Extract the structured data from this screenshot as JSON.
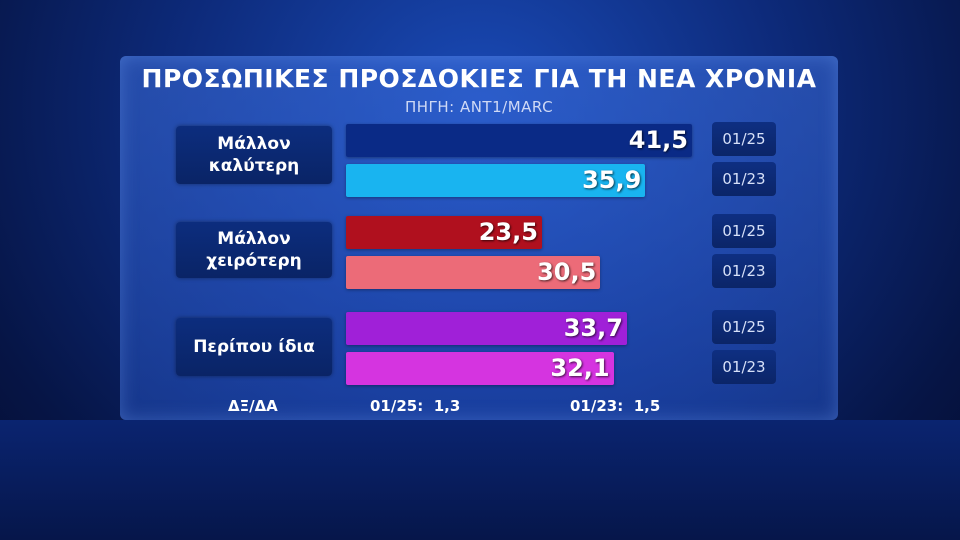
{
  "chart_data": {
    "type": "bar",
    "title": "ΠΡΟΣΩΠΙΚΕΣ ΠΡΟΣΔΟΚΙΕΣ ΓΙΑ ΤΗ ΝΕΑ ΧΡΟΝΙΑ",
    "subtitle": "ΠΗΓΗ: ANT1/MARC",
    "categories": [
      "Μάλλον\nκαλύτερη",
      "Μάλλον\nχειρότερη",
      "Περίπου  ίδια"
    ],
    "groups": [
      {
        "category": "Μάλλον\nκαλύτερη",
        "bars": [
          {
            "period": "01/25",
            "value": 41.5,
            "label": "41,5",
            "color": "#0a2a86"
          },
          {
            "period": "01/23",
            "value": 35.9,
            "label": "35,9",
            "color": "#19b4f0"
          }
        ]
      },
      {
        "category": "Μάλλον\nχειρότερη",
        "bars": [
          {
            "period": "01/25",
            "value": 23.5,
            "label": "23,5",
            "color": "#b0101e"
          },
          {
            "period": "01/23",
            "value": 30.5,
            "label": "30,5",
            "color": "#ec6b78"
          }
        ]
      },
      {
        "category": "Περίπου  ίδια",
        "bars": [
          {
            "period": "01/25",
            "value": 33.7,
            "label": "33,7",
            "color": "#a020d8"
          },
          {
            "period": "01/23",
            "value": 32.1,
            "label": "32,1",
            "color": "#d534e0"
          }
        ]
      }
    ],
    "footer": {
      "label": "ΔΞ/ΔΑ",
      "items": [
        {
          "period": "01/25:",
          "value": "1,3"
        },
        {
          "period": "01/23:",
          "value": "1,5"
        }
      ]
    },
    "xlim": [
      0,
      100
    ]
  }
}
